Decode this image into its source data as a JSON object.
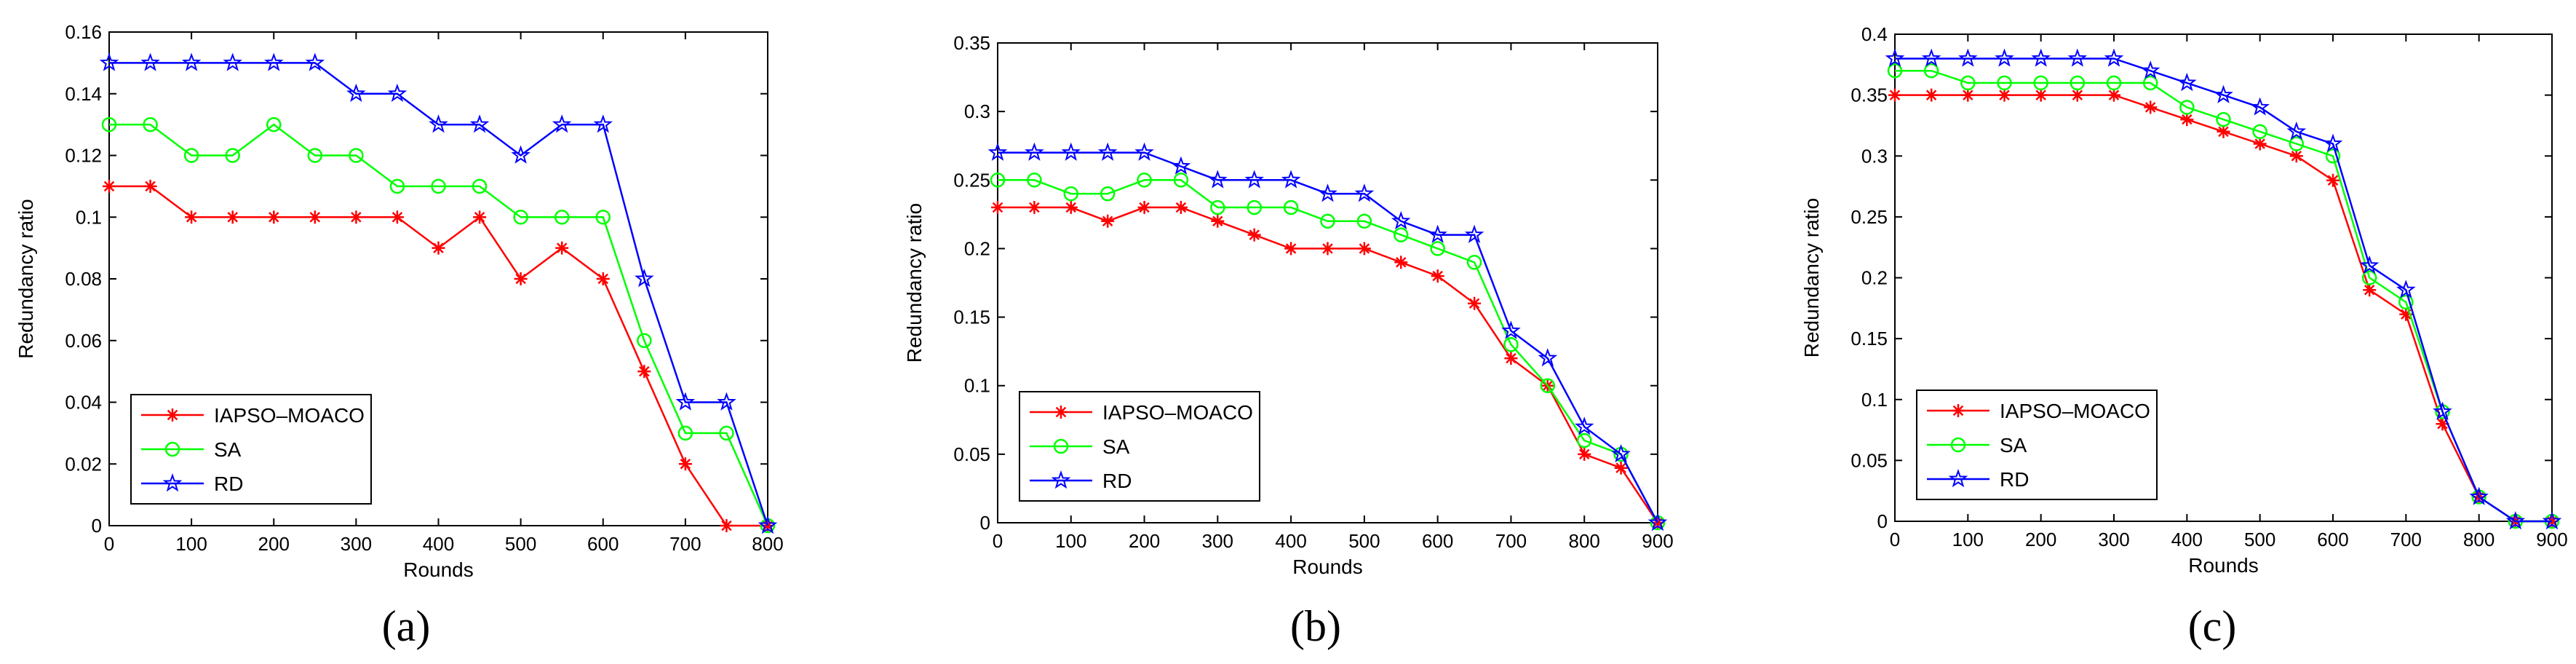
{
  "chart_data": [
    {
      "type": "line",
      "panel_label": "(a)",
      "xlabel": "Rounds",
      "ylabel": "Redundancy ratio",
      "xlim": [
        0,
        800
      ],
      "ylim": [
        0,
        0.16
      ],
      "xticks": [
        0,
        100,
        200,
        300,
        400,
        500,
        600,
        700,
        800
      ],
      "xtick_labels": [
        "0",
        "100",
        "200",
        "300",
        "400",
        "500",
        "600",
        "700",
        "800"
      ],
      "yticks": [
        0,
        0.02,
        0.04,
        0.06,
        0.08,
        0.1,
        0.12,
        0.14,
        0.16
      ],
      "ytick_labels": [
        "0",
        "0.02",
        "0.04",
        "0.06",
        "0.08",
        "0.1",
        "0.12",
        "0.14",
        "0.16"
      ],
      "grid": false,
      "legend_position": "bottom-left",
      "x": [
        0,
        50,
        100,
        150,
        200,
        250,
        300,
        350,
        400,
        450,
        500,
        550,
        600,
        650,
        700,
        750,
        800
      ],
      "series": [
        {
          "name": "IAPSO–MOACO",
          "color": "#ff0000",
          "marker": "asterisk",
          "values": [
            0.11,
            0.11,
            0.1,
            0.1,
            0.1,
            0.1,
            0.1,
            0.1,
            0.09,
            0.1,
            0.08,
            0.09,
            0.08,
            0.05,
            0.02,
            0.0,
            0.0
          ]
        },
        {
          "name": "SA",
          "color": "#00ff00",
          "marker": "circle",
          "values": [
            0.13,
            0.13,
            0.12,
            0.12,
            0.13,
            0.12,
            0.12,
            0.11,
            0.11,
            0.11,
            0.1,
            0.1,
            0.1,
            0.06,
            0.03,
            0.03,
            0.0
          ]
        },
        {
          "name": "RD",
          "color": "#0000ff",
          "marker": "star",
          "values": [
            0.15,
            0.15,
            0.15,
            0.15,
            0.15,
            0.15,
            0.14,
            0.14,
            0.13,
            0.13,
            0.12,
            0.13,
            0.13,
            0.08,
            0.04,
            0.04,
            0.0
          ]
        }
      ]
    },
    {
      "type": "line",
      "panel_label": "(b)",
      "xlabel": "Rounds",
      "ylabel": "Redundancy ratio",
      "xlim": [
        0,
        900
      ],
      "ylim": [
        0,
        0.35
      ],
      "xticks": [
        0,
        100,
        200,
        300,
        400,
        500,
        600,
        700,
        800,
        900
      ],
      "xtick_labels": [
        "0",
        "100",
        "200",
        "300",
        "400",
        "500",
        "600",
        "700",
        "800",
        "900"
      ],
      "yticks": [
        0,
        0.05,
        0.1,
        0.15,
        0.2,
        0.25,
        0.3,
        0.35
      ],
      "ytick_labels": [
        "0",
        "0.05",
        "0.1",
        "0.15",
        "0.2",
        "0.25",
        "0.3",
        "0.35"
      ],
      "grid": false,
      "legend_position": "bottom-left",
      "x": [
        0,
        50,
        100,
        150,
        200,
        250,
        300,
        350,
        400,
        450,
        500,
        550,
        600,
        650,
        700,
        750,
        800,
        850,
        900
      ],
      "series": [
        {
          "name": "IAPSO–MOACO",
          "color": "#ff0000",
          "marker": "asterisk",
          "values": [
            0.23,
            0.23,
            0.23,
            0.22,
            0.23,
            0.23,
            0.22,
            0.21,
            0.2,
            0.2,
            0.2,
            0.19,
            0.18,
            0.16,
            0.12,
            0.1,
            0.05,
            0.04,
            0.0
          ]
        },
        {
          "name": "SA",
          "color": "#00ff00",
          "marker": "circle",
          "values": [
            0.25,
            0.25,
            0.24,
            0.24,
            0.25,
            0.25,
            0.23,
            0.23,
            0.23,
            0.22,
            0.22,
            0.21,
            0.2,
            0.19,
            0.13,
            0.1,
            0.06,
            0.05,
            0.0
          ]
        },
        {
          "name": "RD",
          "color": "#0000ff",
          "marker": "star",
          "values": [
            0.27,
            0.27,
            0.27,
            0.27,
            0.27,
            0.26,
            0.25,
            0.25,
            0.25,
            0.24,
            0.24,
            0.22,
            0.21,
            0.21,
            0.14,
            0.12,
            0.07,
            0.05,
            0.0
          ]
        }
      ]
    },
    {
      "type": "line",
      "panel_label": "(c)",
      "xlabel": "Rounds",
      "ylabel": "Redundancy ratio",
      "xlim": [
        0,
        900
      ],
      "ylim": [
        0,
        0.4
      ],
      "xticks": [
        0,
        100,
        200,
        300,
        400,
        500,
        600,
        700,
        800,
        900
      ],
      "xtick_labels": [
        "0",
        "100",
        "200",
        "300",
        "400",
        "500",
        "600",
        "700",
        "800",
        "900"
      ],
      "yticks": [
        0,
        0.05,
        0.1,
        0.15,
        0.2,
        0.25,
        0.3,
        0.35,
        0.4
      ],
      "ytick_labels": [
        "0",
        "0.05",
        "0.1",
        "0.15",
        "0.2",
        "0.25",
        "0.3",
        "0.35",
        "0.4"
      ],
      "grid": false,
      "legend_position": "bottom-left",
      "x": [
        0,
        50,
        100,
        150,
        200,
        250,
        300,
        350,
        400,
        450,
        500,
        550,
        600,
        650,
        700,
        750,
        800,
        850,
        900
      ],
      "series": [
        {
          "name": "IAPSO–MOACO",
          "color": "#ff0000",
          "marker": "asterisk",
          "values": [
            0.35,
            0.35,
            0.35,
            0.35,
            0.35,
            0.35,
            0.35,
            0.34,
            0.33,
            0.32,
            0.31,
            0.3,
            0.28,
            0.19,
            0.17,
            0.08,
            0.02,
            0.0,
            0.0
          ]
        },
        {
          "name": "SA",
          "color": "#00ff00",
          "marker": "circle",
          "values": [
            0.37,
            0.37,
            0.36,
            0.36,
            0.36,
            0.36,
            0.36,
            0.36,
            0.34,
            0.33,
            0.32,
            0.31,
            0.3,
            0.2,
            0.18,
            0.09,
            0.02,
            0.0,
            0.0
          ]
        },
        {
          "name": "RD",
          "color": "#0000ff",
          "marker": "star",
          "values": [
            0.38,
            0.38,
            0.38,
            0.38,
            0.38,
            0.38,
            0.38,
            0.37,
            0.36,
            0.35,
            0.34,
            0.32,
            0.31,
            0.21,
            0.19,
            0.09,
            0.02,
            0.0,
            0.0
          ]
        }
      ]
    }
  ]
}
